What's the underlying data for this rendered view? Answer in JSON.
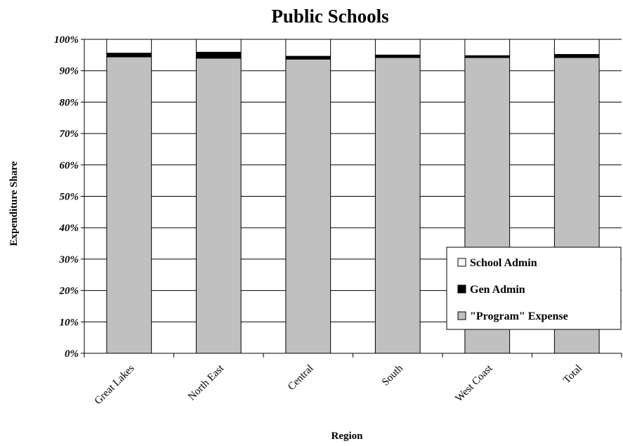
{
  "chart_data": {
    "type": "bar",
    "stacked": true,
    "title": "Public Schools",
    "xlabel": "Region",
    "ylabel": "Expenditure Share",
    "categories": [
      "Great Lakes",
      "North East",
      "Central",
      "South",
      "West Coast",
      "Total"
    ],
    "y_ticks": [
      "0%",
      "10%",
      "20%",
      "30%",
      "40%",
      "50%",
      "60%",
      "70%",
      "80%",
      "90%",
      "100%"
    ],
    "ylim": [
      0,
      100
    ],
    "grid": true,
    "legend_position": "bottom-right",
    "series": [
      {
        "name": "\"Program\" Expense",
        "values": [
          94.4,
          94.0,
          93.7,
          94.2,
          94.2,
          94.2
        ],
        "color": "#c0c0c0"
      },
      {
        "name": "Gen Admin",
        "values": [
          1.2,
          1.9,
          0.9,
          0.8,
          0.6,
          1.0
        ],
        "color": "#000000"
      },
      {
        "name": "School Admin",
        "values": [
          4.4,
          4.1,
          5.4,
          5.0,
          5.2,
          4.8
        ],
        "color": "#ffffff"
      }
    ],
    "legend_order": [
      "School Admin",
      "Gen Admin",
      "\"Program\" Expense"
    ]
  }
}
